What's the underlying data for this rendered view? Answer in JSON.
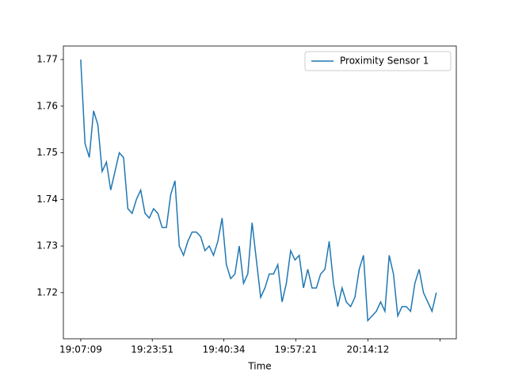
{
  "chart_data": {
    "type": "line",
    "xlabel": "Time",
    "x": [
      "19:07:09",
      "19:08:09",
      "19:09:09",
      "19:10:09",
      "19:11:09",
      "19:12:09",
      "19:13:09",
      "19:14:09",
      "19:15:09",
      "19:16:09",
      "19:17:09",
      "19:18:09",
      "19:19:09",
      "19:20:09",
      "19:21:09",
      "19:22:09",
      "19:23:09",
      "19:24:09",
      "19:25:09",
      "19:26:09",
      "19:27:09",
      "19:28:09",
      "19:29:09",
      "19:30:09",
      "19:31:09",
      "19:32:09",
      "19:33:09",
      "19:34:09",
      "19:35:09",
      "19:36:09",
      "19:37:09",
      "19:38:09",
      "19:39:09",
      "19:40:09",
      "19:41:09",
      "19:42:09",
      "19:43:09",
      "19:44:09",
      "19:45:09",
      "19:46:09",
      "19:47:09",
      "19:48:09",
      "19:49:09",
      "19:50:09",
      "19:51:09",
      "19:52:09",
      "19:53:09",
      "19:54:09",
      "19:55:09",
      "19:56:09",
      "19:57:09",
      "19:58:09",
      "19:59:09",
      "20:00:09",
      "20:01:09",
      "20:02:09",
      "20:03:09",
      "20:04:09",
      "20:05:09",
      "20:06:09",
      "20:07:09",
      "20:08:09",
      "20:09:09",
      "20:10:09",
      "20:11:09",
      "20:12:09",
      "20:13:09",
      "20:14:09",
      "20:15:09",
      "20:16:09",
      "20:17:09",
      "20:18:09",
      "20:19:09",
      "20:20:09",
      "20:21:09",
      "20:22:09",
      "20:23:09",
      "20:24:09",
      "20:25:09",
      "20:26:09",
      "20:27:09",
      "20:28:09",
      "20:29:09",
      "20:30:09"
    ],
    "series": [
      {
        "name": "Proximity Sensor 1",
        "color": "#1f77b4",
        "values": [
          1.77,
          1.752,
          1.749,
          1.759,
          1.756,
          1.746,
          1.748,
          1.742,
          1.746,
          1.75,
          1.749,
          1.738,
          1.737,
          1.74,
          1.742,
          1.737,
          1.736,
          1.738,
          1.737,
          1.734,
          1.734,
          1.741,
          1.744,
          1.73,
          1.728,
          1.731,
          1.733,
          1.733,
          1.732,
          1.729,
          1.73,
          1.728,
          1.731,
          1.736,
          1.726,
          1.723,
          1.724,
          1.73,
          1.722,
          1.724,
          1.735,
          1.727,
          1.719,
          1.721,
          1.724,
          1.724,
          1.726,
          1.718,
          1.722,
          1.729,
          1.727,
          1.728,
          1.721,
          1.725,
          1.721,
          1.721,
          1.724,
          1.725,
          1.731,
          1.722,
          1.717,
          1.721,
          1.718,
          1.717,
          1.719,
          1.725,
          1.728,
          1.714,
          1.715,
          1.716,
          1.718,
          1.716,
          1.728,
          1.724,
          1.715,
          1.717,
          1.717,
          1.716,
          1.722,
          1.725,
          1.72,
          1.718,
          1.716,
          1.72
        ]
      }
    ],
    "xlim": [
      "19:03:06",
      "20:34:49"
    ],
    "xticks": [
      "19:07:09",
      "19:23:51",
      "19:40:34",
      "19:57:21",
      "20:14:12",
      {
        "value": "20:31:00",
        "label": null
      }
    ],
    "ylim": [
      1.7101,
      1.7729
    ],
    "yticks": [
      1.72,
      1.73,
      1.74,
      1.75,
      1.76,
      1.77
    ],
    "grid": false,
    "legend": "upper right"
  }
}
